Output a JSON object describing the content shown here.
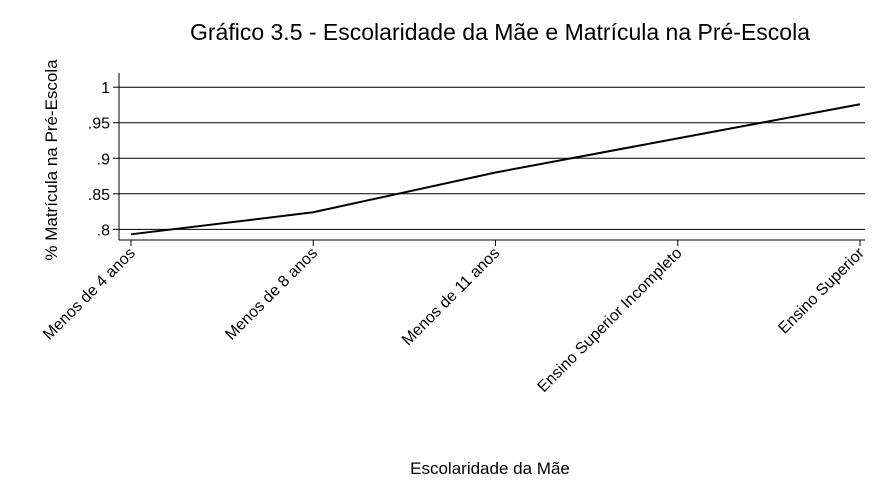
{
  "chart_data": {
    "type": "line",
    "title": "Gráfico 3.5 - Escolaridade da Mãe e Matrícula na Pré-Escola",
    "x_label": "Escolaridade da Mãe",
    "y_label": "% Matrícula na Pré-Escola",
    "categories": [
      "Menos de 4 anos",
      "Menos de 8 anos",
      "Menos de 11 anos",
      "Ensino Superior Incompleto",
      "Ensino Superior"
    ],
    "series": [
      {
        "name": "% Matrícula na Pré-Escola",
        "color": "#000000",
        "values": [
          0.793,
          0.824,
          0.88,
          0.928,
          0.976
        ]
      }
    ],
    "ylim": [
      0.785,
      1.02
    ],
    "yticks": [
      {
        "value": 0.8,
        "label": ".8"
      },
      {
        "value": 0.85,
        "label": ".85"
      },
      {
        "value": 0.9,
        "label": ".9"
      },
      {
        "value": 0.95,
        "label": ".95"
      },
      1
    ],
    "grid": true
  }
}
